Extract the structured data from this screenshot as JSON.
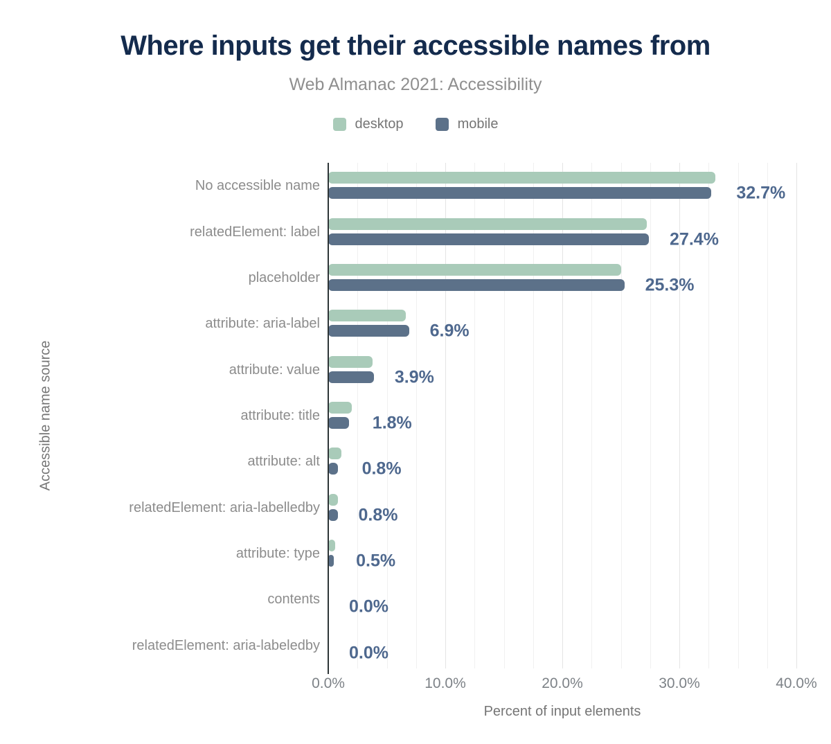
{
  "chart_data": {
    "type": "bar",
    "orientation": "horizontal",
    "title": "Where inputs get their accessible names from",
    "subtitle": "Web Almanac 2021: Accessibility",
    "xlabel": "Percent of input elements",
    "ylabel": "Accessible name source",
    "xlim": [
      0,
      40
    ],
    "grid": "vertical-minor",
    "legend_position": "top-center",
    "x_ticks": [
      "0.0%",
      "10.0%",
      "20.0%",
      "30.0%",
      "40.0%"
    ],
    "x_tick_values": [
      0,
      10,
      20,
      30,
      40
    ],
    "legend": [
      {
        "name": "desktop",
        "color": "#a9cbb9"
      },
      {
        "name": "mobile",
        "color": "#5c7189"
      }
    ],
    "categories": [
      "No accessible name",
      "relatedElement: label",
      "placeholder",
      "attribute: aria-label",
      "attribute: value",
      "attribute: title",
      "attribute: alt",
      "relatedElement: aria-labelledby",
      "attribute: type",
      "contents",
      "relatedElement: aria-labeledby"
    ],
    "series": [
      {
        "name": "desktop",
        "values": [
          33.1,
          27.2,
          25.0,
          6.6,
          3.8,
          2.0,
          1.1,
          0.8,
          0.6,
          0.0,
          0.0
        ]
      },
      {
        "name": "mobile",
        "values": [
          32.7,
          27.4,
          25.3,
          6.9,
          3.9,
          1.8,
          0.8,
          0.8,
          0.5,
          0.0,
          0.0
        ]
      }
    ],
    "value_labels": [
      "32.7%",
      "27.4%",
      "25.3%",
      "6.9%",
      "3.9%",
      "1.8%",
      "0.8%",
      "0.8%",
      "0.5%",
      "0.0%",
      "0.0%"
    ],
    "colors": {
      "title": "#142b4d",
      "subtitle": "#8f8f8f",
      "value_label": "#4e688e",
      "axis_line": "#2d3436",
      "gridline_minor": "#f0f0f0",
      "gridline_major": "#e4e4e4",
      "category_label": "#8c8c8c",
      "tick_label": "#7d8287"
    }
  }
}
